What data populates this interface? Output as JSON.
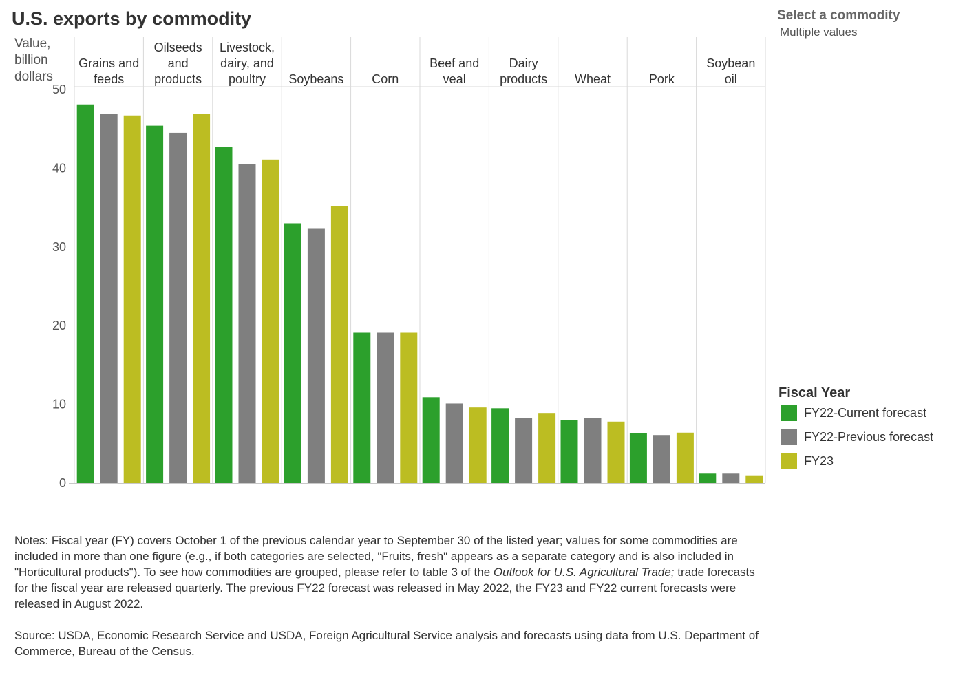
{
  "title": "U.S. exports by commodity",
  "filter": {
    "label": "Select a commodity",
    "value": "Multiple values"
  },
  "legend": {
    "title": "Fiscal Year",
    "items": [
      {
        "label": "FY22-Current forecast",
        "color": "#2ca02c"
      },
      {
        "label": "FY22-Previous forecast",
        "color": "#7f7f7f"
      },
      {
        "label": "FY23",
        "color": "#bcbd22"
      }
    ]
  },
  "notes": {
    "part1": "Notes: Fiscal year (FY) covers October 1 of the previous calendar year to September 30 of the listed year; values for some commodities are included in more than one figure (e.g., if both categories are selected, \"Fruits, fresh\" appears as a separate category and is also included in \"Horticultural products\"). To see how commodities are grouped, please refer to table 3 of the ",
    "italic": "Outlook for U.S. Agricultural Trade;",
    "part2": " trade forecasts for the fiscal year are released quarterly. The previous FY22 forecast was released in May 2022, the FY23 and FY22 current forecasts were released in August 2022."
  },
  "source": "Source: USDA, Economic Research Service and USDA, Foreign Agricultural Service analysis and forecasts using data from U.S. Department of Commerce, Bureau of the Census.",
  "chart_data": {
    "type": "bar",
    "title": "U.S. exports by commodity",
    "ylabel_lines": [
      "Value,",
      "billion",
      "dollars"
    ],
    "ylim": [
      0,
      50
    ],
    "yticks": [
      0,
      10,
      20,
      30,
      40,
      50
    ],
    "categories": [
      {
        "name": "Grains and feeds",
        "lines": [
          "Grains and",
          "feeds"
        ]
      },
      {
        "name": "Oilseeds and products",
        "lines": [
          "Oilseeds",
          "and",
          "products"
        ]
      },
      {
        "name": "Livestock, dairy, and poultry",
        "lines": [
          "Livestock,",
          "dairy, and",
          "poultry"
        ]
      },
      {
        "name": "Soybeans",
        "lines": [
          "Soybeans"
        ]
      },
      {
        "name": "Corn",
        "lines": [
          "Corn"
        ]
      },
      {
        "name": "Beef and veal",
        "lines": [
          "Beef and",
          "veal"
        ]
      },
      {
        "name": "Dairy products",
        "lines": [
          "Dairy",
          "products"
        ]
      },
      {
        "name": "Wheat",
        "lines": [
          "Wheat"
        ]
      },
      {
        "name": "Pork",
        "lines": [
          "Pork"
        ]
      },
      {
        "name": "Soybean oil",
        "lines": [
          "Soybean",
          "oil"
        ]
      }
    ],
    "series": [
      {
        "name": "FY22-Current forecast",
        "color": "#2ca02c",
        "values": [
          48.1,
          45.4,
          42.7,
          33.0,
          19.1,
          10.9,
          9.5,
          8.0,
          6.3,
          1.2
        ]
      },
      {
        "name": "FY22-Previous forecast",
        "color": "#7f7f7f",
        "values": [
          46.9,
          44.5,
          40.5,
          32.3,
          19.1,
          10.1,
          8.3,
          8.3,
          6.1,
          1.2
        ]
      },
      {
        "name": "FY23",
        "color": "#bcbd22",
        "values": [
          46.7,
          46.9,
          41.1,
          35.2,
          19.1,
          9.6,
          8.9,
          7.8,
          6.4,
          0.9
        ]
      }
    ]
  }
}
